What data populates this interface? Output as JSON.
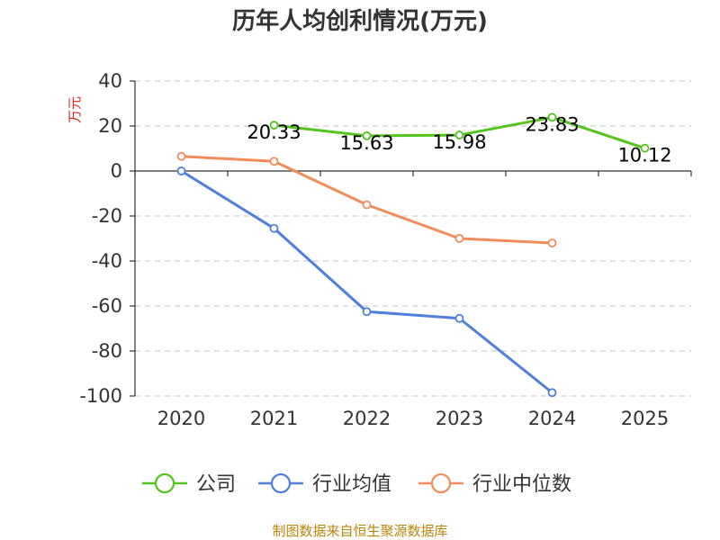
{
  "chart_data": {
    "type": "line",
    "title": "历年人均创利情况(万元)",
    "ylabel": "万元",
    "xlabel": "",
    "ylim": [
      -100,
      40
    ],
    "yticks": [
      "40",
      "20",
      "0",
      "-20",
      "-40",
      "-60",
      "-80",
      "-100"
    ],
    "categories": [
      "2020",
      "2021",
      "2022",
      "2023",
      "2024",
      "2025"
    ],
    "grid": true,
    "legend_position": "bottom",
    "series": [
      {
        "name": "公司",
        "color": "#52c41a",
        "values": [
          null,
          20.33,
          15.63,
          15.98,
          23.83,
          10.12
        ],
        "labels": [
          "",
          "20.33",
          "15.63",
          "15.98",
          "23.83",
          "10.12"
        ]
      },
      {
        "name": "行业均值",
        "color": "#4e7fdc",
        "values": [
          0,
          -25.5,
          -62.5,
          -65.5,
          -98.5,
          null
        ],
        "labels": [
          "",
          "",
          "",
          "",
          "",
          ""
        ]
      },
      {
        "name": "行业中位数",
        "color": "#f28c5a",
        "values": [
          6.5,
          4.3,
          -15,
          -30,
          -32,
          null
        ],
        "labels": [
          "",
          "",
          "",
          "",
          "",
          ""
        ]
      }
    ],
    "source": "制图数据来自恒生聚源数据库"
  }
}
